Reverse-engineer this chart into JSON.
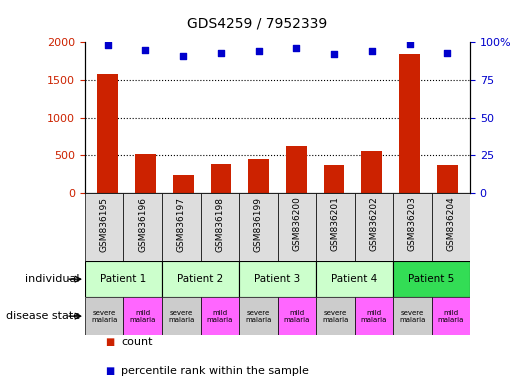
{
  "title": "GDS4259 / 7952339",
  "samples": [
    "GSM836195",
    "GSM836196",
    "GSM836197",
    "GSM836198",
    "GSM836199",
    "GSM836200",
    "GSM836201",
    "GSM836202",
    "GSM836203",
    "GSM836204"
  ],
  "counts": [
    1580,
    520,
    240,
    390,
    450,
    620,
    370,
    560,
    1840,
    370
  ],
  "percentiles": [
    98,
    95,
    91,
    93,
    94,
    96,
    92,
    94,
    99,
    93
  ],
  "bar_color": "#cc2200",
  "dot_color": "#0000cc",
  "ylim_left": [
    0,
    2000
  ],
  "ylim_right": [
    0,
    100
  ],
  "yticks_left": [
    0,
    500,
    1000,
    1500,
    2000
  ],
  "ytick_labels_left": [
    "0",
    "500",
    "1000",
    "1500",
    "2000"
  ],
  "yticks_right": [
    0,
    25,
    50,
    75,
    100
  ],
  "ytick_labels_right": [
    "0",
    "25",
    "50",
    "75",
    "100%"
  ],
  "patients": [
    "Patient 1",
    "Patient 2",
    "Patient 3",
    "Patient 4",
    "Patient 5"
  ],
  "patient_starts": [
    0,
    2,
    4,
    6,
    8
  ],
  "patient_colors": [
    "#ccffcc",
    "#ccffcc",
    "#ccffcc",
    "#ccffcc",
    "#33dd55"
  ],
  "disease_labels": [
    "severe\nmalaria",
    "mild\nmalaria",
    "severe\nmalaria",
    "mild\nmalaria",
    "severe\nmalaria",
    "mild\nmalaria",
    "severe\nmalaria",
    "mild\nmalaria",
    "severe\nmalaria",
    "mild\nmalaria"
  ],
  "disease_colors": [
    "#cccccc",
    "#ff66ff",
    "#cccccc",
    "#ff66ff",
    "#cccccc",
    "#ff66ff",
    "#cccccc",
    "#ff66ff",
    "#cccccc",
    "#ff66ff"
  ],
  "sample_bg_color": "#dddddd",
  "legend_count_color": "#cc2200",
  "legend_dot_color": "#0000cc",
  "left_tick_color": "#cc2200",
  "right_tick_color": "#0000cc"
}
